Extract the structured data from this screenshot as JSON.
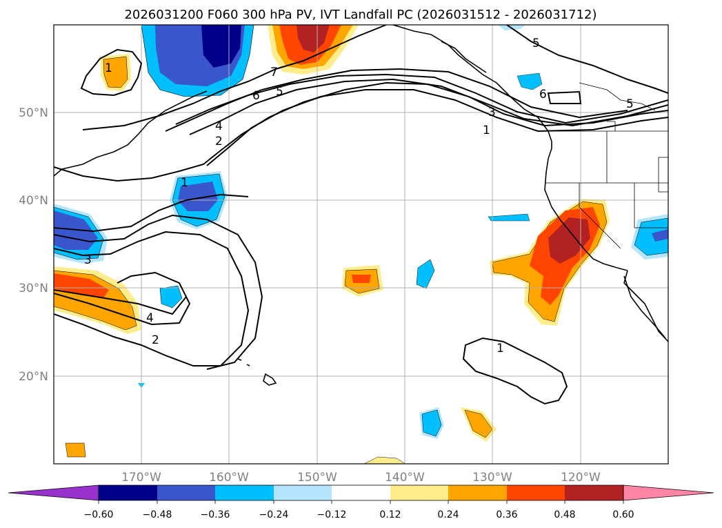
{
  "title": "2026031200 F060 300 hPa PV, IVT Landfall PC (2026031512 - 2026031712)",
  "lat_labels": [
    "50°N",
    "40°N",
    "30°N",
    "20°N"
  ],
  "lon_labels": [
    "170°W",
    "160°W",
    "150°W",
    "140°W",
    "130°W",
    "120°W"
  ],
  "colorbar": {
    "ticks": [
      "−0.60",
      "−0.48",
      "−0.36",
      "−0.24",
      "−0.12",
      "0.12",
      "0.24",
      "0.36",
      "0.48",
      "0.60"
    ],
    "under_color": "#9932cc",
    "colors": [
      "#00008b",
      "#3a56cc",
      "#00bfff",
      "#b3e5fc",
      "#ffffff",
      "#ffec8b",
      "#ffa500",
      "#ff4500",
      "#b22222"
    ],
    "over_color": "#ff85a6"
  },
  "contour_labels": [
    "1",
    "1",
    "1",
    "1",
    "2",
    "2",
    "3",
    "3",
    "4",
    "4",
    "5",
    "5",
    "5",
    "6",
    "6",
    "7"
  ]
}
